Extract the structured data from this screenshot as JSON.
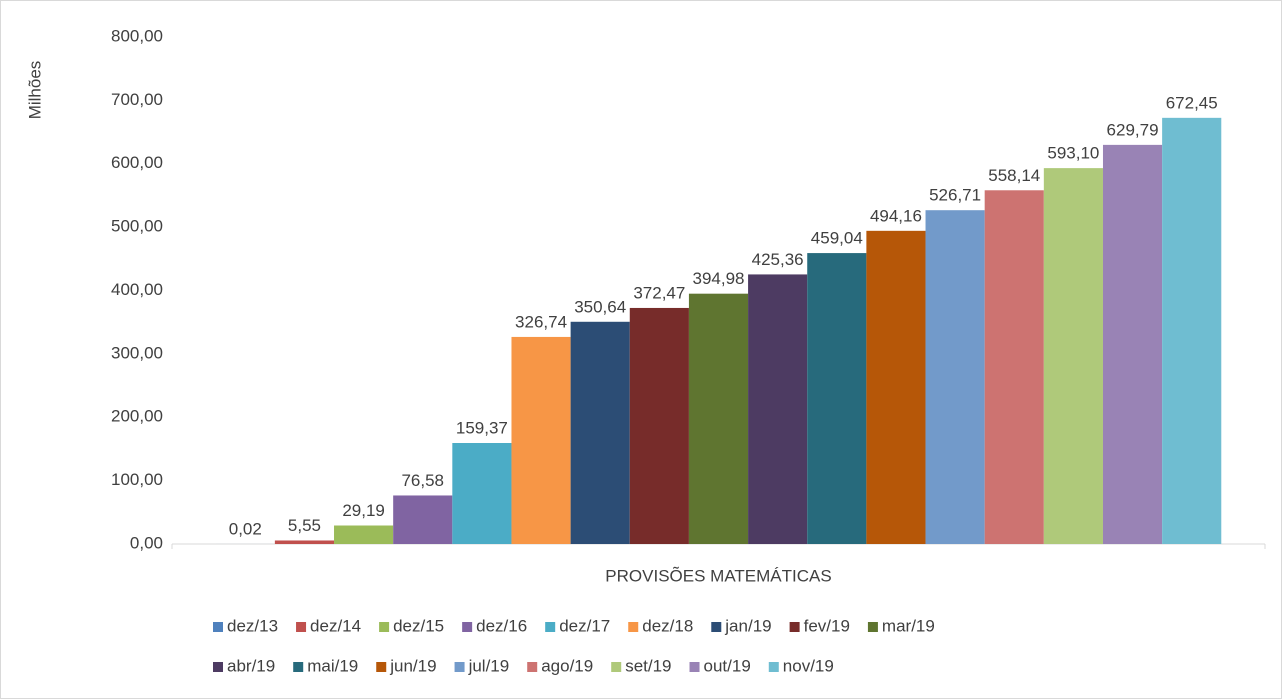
{
  "chart_data": {
    "type": "bar",
    "ylabel": "Milhões",
    "categories": [
      "PROVISÕES MATEMÁTICAS"
    ],
    "ylim": [
      0,
      800
    ],
    "yticks": [
      {
        "value": 0,
        "label": "0,00"
      },
      {
        "value": 100,
        "label": "100,00"
      },
      {
        "value": 200,
        "label": "200,00"
      },
      {
        "value": 300,
        "label": "300,00"
      },
      {
        "value": 400,
        "label": "400,00"
      },
      {
        "value": 500,
        "label": "500,00"
      },
      {
        "value": 600,
        "label": "600,00"
      },
      {
        "value": 700,
        "label": "700,00"
      },
      {
        "value": 800,
        "label": "800,00"
      }
    ],
    "legend": "bottom",
    "series": [
      {
        "name": "dez/13",
        "color": "#4f81bd",
        "values": [
          0.02
        ],
        "value_labels": [
          "0,02"
        ]
      },
      {
        "name": "dez/14",
        "color": "#c0504d",
        "values": [
          5.55
        ],
        "value_labels": [
          "5,55"
        ]
      },
      {
        "name": "dez/15",
        "color": "#9bbb59",
        "values": [
          29.19
        ],
        "value_labels": [
          "29,19"
        ]
      },
      {
        "name": "dez/16",
        "color": "#8064a2",
        "values": [
          76.58
        ],
        "value_labels": [
          "76,58"
        ]
      },
      {
        "name": "dez/17",
        "color": "#4bacc6",
        "values": [
          159.37
        ],
        "value_labels": [
          "159,37"
        ]
      },
      {
        "name": "dez/18",
        "color": "#f79646",
        "values": [
          326.74
        ],
        "value_labels": [
          "326,74"
        ]
      },
      {
        "name": "jan/19",
        "color": "#2c4d75",
        "values": [
          350.64
        ],
        "value_labels": [
          "350,64"
        ]
      },
      {
        "name": "fev/19",
        "color": "#772c2a",
        "values": [
          372.47
        ],
        "value_labels": [
          "372,47"
        ]
      },
      {
        "name": "mar/19",
        "color": "#5f7530",
        "values": [
          394.98
        ],
        "value_labels": [
          "394,98"
        ]
      },
      {
        "name": "abr/19",
        "color": "#4d3b62",
        "values": [
          425.36
        ],
        "value_labels": [
          "425,36"
        ]
      },
      {
        "name": "mai/19",
        "color": "#276a7c",
        "values": [
          459.04
        ],
        "value_labels": [
          "459,04"
        ]
      },
      {
        "name": "jun/19",
        "color": "#b65708",
        "values": [
          494.16
        ],
        "value_labels": [
          "494,16"
        ]
      },
      {
        "name": "jul/19",
        "color": "#729aca",
        "values": [
          526.71
        ],
        "value_labels": [
          "526,71"
        ]
      },
      {
        "name": "ago/19",
        "color": "#cd7371",
        "values": [
          558.14
        ],
        "value_labels": [
          "558,14"
        ]
      },
      {
        "name": "set/19",
        "color": "#afc97a",
        "values": [
          593.1
        ],
        "value_labels": [
          "593,10"
        ]
      },
      {
        "name": "out/19",
        "color": "#9983b5",
        "values": [
          629.79
        ],
        "value_labels": [
          "629,79"
        ]
      },
      {
        "name": "nov/19",
        "color": "#6fbdd1",
        "values": [
          672.45
        ],
        "value_labels": [
          "672,45"
        ]
      }
    ]
  }
}
